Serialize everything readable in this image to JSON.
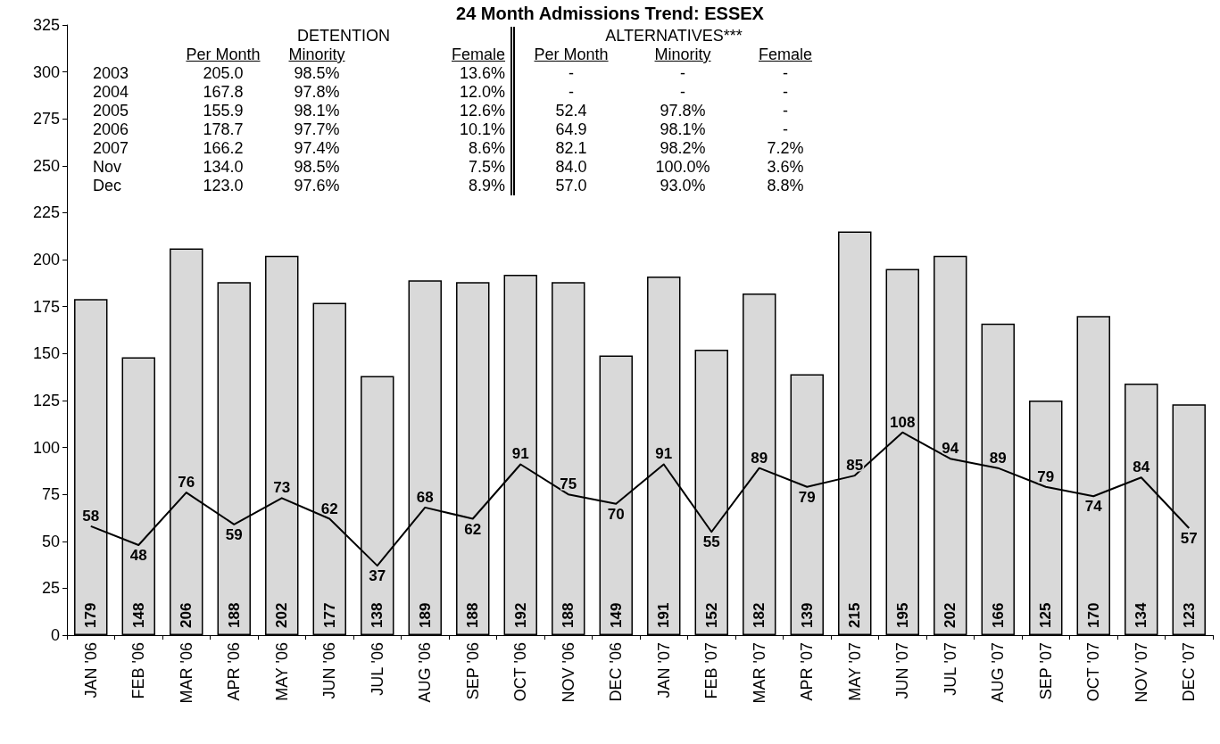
{
  "chart_data": {
    "type": "bar",
    "title": "24 Month Admissions Trend: ESSEX",
    "categories": [
      "JAN '06",
      "FEB '06",
      "MAR '06",
      "APR '06",
      "MAY '06",
      "JUN '06",
      "JUL '06",
      "AUG '06",
      "SEP '06",
      "OCT '06",
      "NOV '06",
      "DEC '06",
      "JAN '07",
      "FEB '07",
      "MAR '07",
      "APR '07",
      "MAY '07",
      "JUN '07",
      "JUL '07",
      "AUG '07",
      "SEP '07",
      "OCT '07",
      "NOV '07",
      "DEC '07"
    ],
    "series": [
      {
        "color": "#d9d9d9",
        "values": [
          179,
          148,
          206,
          188,
          202,
          177,
          138,
          189,
          188,
          192,
          188,
          149,
          191,
          152,
          182,
          139,
          215,
          195,
          202,
          166,
          125,
          170,
          134,
          123
        ]
      },
      {
        "type": "line",
        "color": "#000000",
        "values": [
          58,
          48,
          76,
          59,
          73,
          62,
          37,
          68,
          62,
          91,
          75,
          70,
          91,
          55,
          89,
          79,
          85,
          108,
          94,
          89,
          79,
          74,
          84,
          57
        ]
      }
    ],
    "ylim": [
      0,
      325
    ],
    "yticks": [
      0,
      25,
      50,
      75,
      100,
      125,
      150,
      175,
      200,
      225,
      250,
      275,
      300,
      325
    ],
    "data_labels": true,
    "marker": "none",
    "line_style": "solid",
    "grid": false,
    "annotations": [
      "DETENTION",
      "ALTERNATIVES***",
      "Per Month",
      "Minority",
      "Female",
      "Per Month",
      "Minority",
      "Female",
      "2003",
      "205.0",
      "98.5%",
      "13.6%",
      "-",
      "-",
      "-",
      "2004",
      "167.8",
      "97.8%",
      "12.0%",
      "-",
      "-",
      "-",
      "2005",
      "155.9",
      "98.1%",
      "12.6%",
      "52.4",
      "97.8%",
      "-",
      "2006",
      "178.7",
      "97.7%",
      "10.1%",
      "64.9",
      "98.1%",
      "-",
      "2007",
      "166.2",
      "97.4%",
      "8.6%",
      "82.1",
      "98.2%",
      "7.2%",
      "Nov",
      "134.0",
      "98.5%",
      "7.5%",
      "84.0",
      "100.0%",
      "3.6%",
      "Dec",
      "123.0",
      "97.6%",
      "8.9%",
      "57.0",
      "93.0%",
      "8.8%"
    ]
  }
}
